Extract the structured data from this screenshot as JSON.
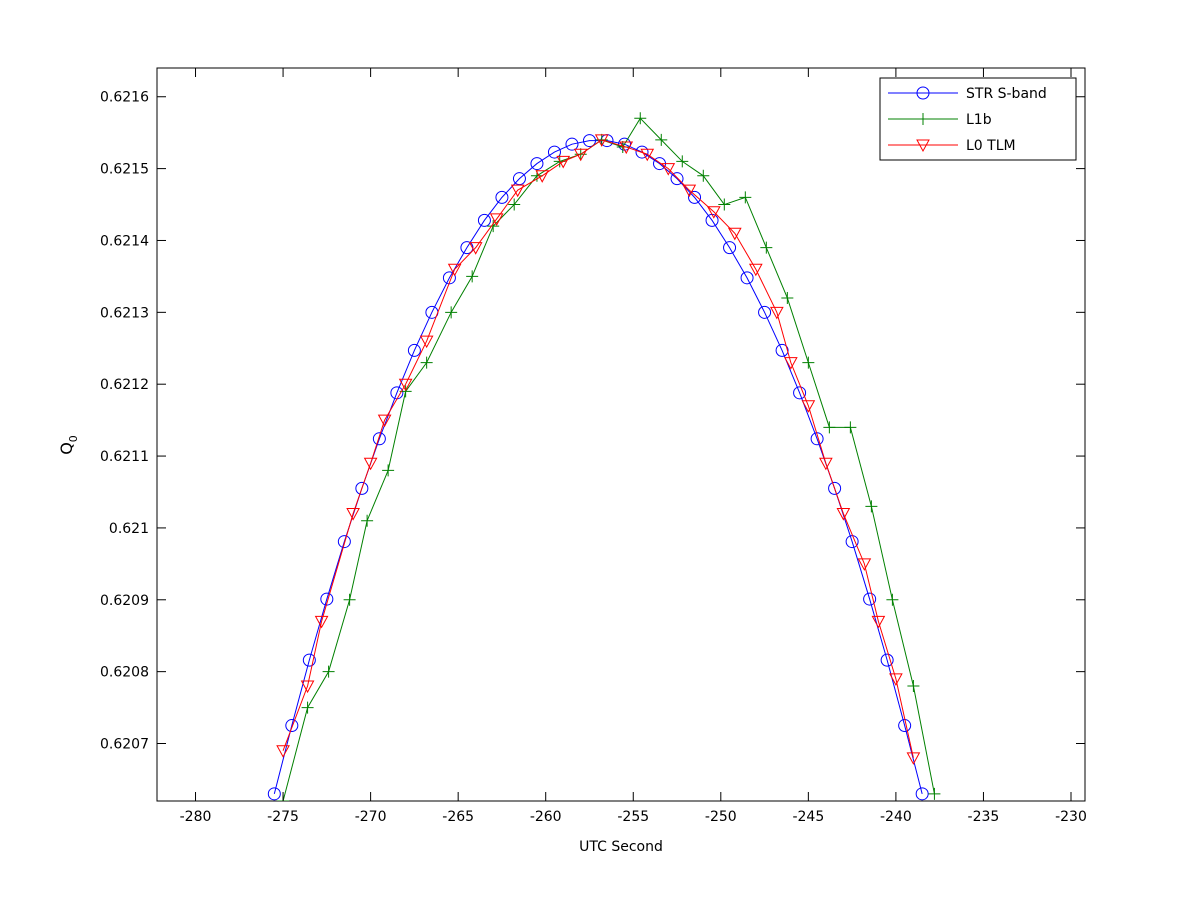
{
  "chart_data": {
    "type": "line",
    "xlabel": "UTC Second",
    "ylabel": {
      "main": "Q",
      "sub": "0"
    },
    "xlim": [
      -282.2,
      -229.2
    ],
    "ylim": [
      0.62062,
      0.62164
    ],
    "xticks": [
      -280,
      -275,
      -270,
      -265,
      -260,
      -255,
      -250,
      -245,
      -240,
      -235,
      -230
    ],
    "yticks": [
      0.6207,
      0.6208,
      0.6209,
      0.621,
      0.6211,
      0.6212,
      0.6213,
      0.6214,
      0.6215,
      0.6216
    ],
    "legend": "top-right",
    "series": [
      {
        "name": "STR S-band",
        "color": "#0000ff",
        "marker": "circle",
        "x": [
          -275.5,
          -274.5,
          -273.5,
          -272.5,
          -271.5,
          -270.5,
          -269.5,
          -268.5,
          -267.5,
          -266.5,
          -265.5,
          -264.5,
          -263.5,
          -262.5,
          -261.5,
          -260.5,
          -259.5,
          -258.5,
          -257.5,
          -256.5,
          -255.5,
          -254.5,
          -253.5,
          -252.5,
          -251.5,
          -250.5,
          -249.5,
          -248.5,
          -247.5,
          -246.5,
          -245.5,
          -244.5,
          -243.5,
          -242.5,
          -241.5,
          -240.5,
          -239.5,
          -238.5
        ],
        "values": [
          0.62063,
          0.620725,
          0.620816,
          0.620901,
          0.620981,
          0.621055,
          0.621124,
          0.621188,
          0.621247,
          0.6213,
          0.621348,
          0.62139,
          0.621428,
          0.62146,
          0.621486,
          0.621507,
          0.621523,
          0.621534,
          0.621539,
          0.621539,
          0.621534,
          0.621523,
          0.621507,
          0.621486,
          0.62146,
          0.621428,
          0.62139,
          0.621348,
          0.6213,
          0.621247,
          0.621188,
          0.621124,
          0.621055,
          0.620981,
          0.620901,
          0.620816,
          0.620725,
          0.62063
        ]
      },
      {
        "name": "L1b",
        "color": "#008000",
        "marker": "plus",
        "x": [
          -275,
          -273.6,
          -272.4,
          -271.2,
          -270.2,
          -269,
          -268,
          -266.8,
          -265.4,
          -264.2,
          -263,
          -261.8,
          -260.5,
          -259.2,
          -258,
          -256.8,
          -255.6,
          -254.6,
          -253.4,
          -252.2,
          -251,
          -249.8,
          -248.6,
          -247.4,
          -246.2,
          -245,
          -243.8,
          -242.6,
          -241.4,
          -240.2,
          -239,
          -237.8
        ],
        "values": [
          0.62062,
          0.62075,
          0.6208,
          0.6209,
          0.62101,
          0.62108,
          0.62119,
          0.62123,
          0.6213,
          0.62135,
          0.62142,
          0.62145,
          0.62149,
          0.62151,
          0.62152,
          0.62154,
          0.62153,
          0.62157,
          0.62154,
          0.62151,
          0.62149,
          0.62145,
          0.62146,
          0.62139,
          0.62132,
          0.62123,
          0.62114,
          0.62114,
          0.62103,
          0.6209,
          0.62078,
          0.62063
        ]
      },
      {
        "name": "L0 TLM",
        "color": "#ff0000",
        "marker": "triangle-down",
        "x": [
          -275,
          -273.6,
          -272.8,
          -271,
          -270,
          -269.2,
          -268,
          -266.8,
          -265.2,
          -264,
          -262.8,
          -261.6,
          -260.2,
          -259,
          -258,
          -256.8,
          -255.4,
          -254.2,
          -253,
          -251.8,
          -250.4,
          -249.2,
          -248,
          -246.8,
          -246,
          -245,
          -244,
          -243,
          -241.8,
          -241,
          -240,
          -239
        ],
        "values": [
          0.62069,
          0.62078,
          0.62087,
          0.62102,
          0.62109,
          0.62115,
          0.6212,
          0.62126,
          0.62136,
          0.62139,
          0.62143,
          0.62147,
          0.62149,
          0.62151,
          0.62152,
          0.62154,
          0.62153,
          0.62152,
          0.6215,
          0.62147,
          0.62144,
          0.62141,
          0.62136,
          0.6213,
          0.62123,
          0.62117,
          0.62109,
          0.62102,
          0.62095,
          0.62087,
          0.62079,
          0.62068
        ]
      }
    ]
  }
}
